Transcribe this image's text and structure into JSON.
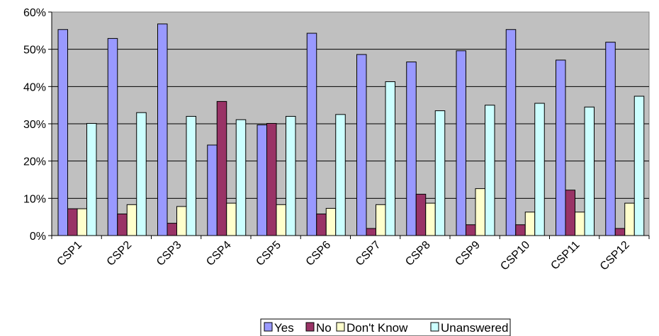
{
  "chart_data": {
    "type": "bar",
    "categories": [
      "CSP1",
      "CSP2",
      "CSP3",
      "CSP4",
      "CSP5",
      "CSP6",
      "CSP7",
      "CSP8",
      "CSP9",
      "CSP10",
      "CSP11",
      "CSP12"
    ],
    "series": [
      {
        "name": "Yes",
        "color": "#9999ff",
        "values": [
          55.3,
          52.9,
          56.8,
          24.3,
          29.7,
          54.3,
          48.6,
          46.6,
          49.6,
          55.3,
          47.1,
          51.9
        ]
      },
      {
        "name": "No",
        "color": "#993366",
        "values": [
          7.2,
          5.8,
          3.3,
          36.0,
          30.1,
          5.8,
          1.9,
          11.1,
          2.9,
          2.9,
          12.2,
          1.9
        ]
      },
      {
        "name": "Don't Know",
        "color": "#ffffcc",
        "values": [
          7.2,
          8.3,
          7.8,
          8.7,
          8.3,
          7.3,
          8.3,
          8.7,
          12.6,
          6.3,
          6.3,
          8.7
        ]
      },
      {
        "name": "Unanswered",
        "color": "#ccffff",
        "values": [
          30.1,
          33.0,
          32.0,
          31.1,
          32.0,
          32.5,
          41.3,
          33.5,
          35.0,
          35.5,
          34.5,
          37.4
        ]
      }
    ],
    "ylim": [
      0,
      60
    ],
    "yticks": [
      "0%",
      "10%",
      "20%",
      "30%",
      "40%",
      "50%",
      "60%"
    ],
    "y_unit": "%",
    "grid": true,
    "plot_background": "#c0c0c0",
    "legend_position": "bottom-center"
  }
}
